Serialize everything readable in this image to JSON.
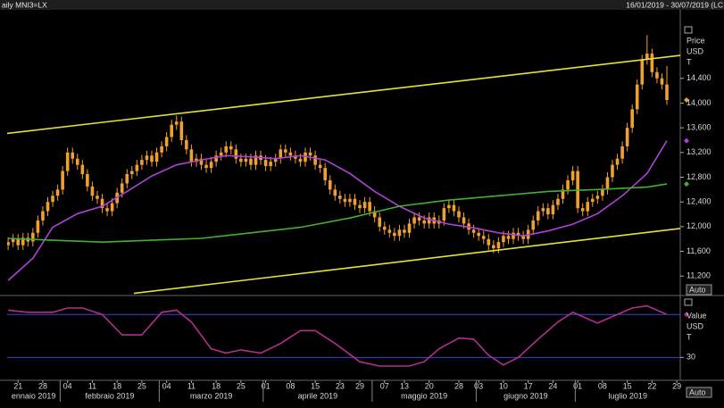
{
  "header": {
    "title": "aily MNI3=LX",
    "range": "16/01/2019 - 30/07/2019 (LC"
  },
  "chart_data": [
    {
      "type": "candlestick",
      "color": "#f0a030",
      "axis_label": [
        "Price",
        "USD",
        "T"
      ],
      "button": "Auto",
      "x": [
        1,
        2,
        3,
        4,
        5,
        6,
        7,
        8,
        9,
        10,
        11,
        12,
        13,
        14,
        15,
        16,
        17,
        18,
        19,
        20,
        21,
        22,
        23,
        24,
        25,
        26,
        27,
        28,
        29,
        30,
        31,
        32,
        33,
        34,
        35,
        36,
        37,
        38,
        39,
        40,
        41,
        42,
        43,
        44,
        45,
        46,
        47,
        48,
        49,
        50,
        51,
        52,
        53,
        54,
        55,
        56,
        57,
        58,
        59,
        60,
        61,
        62,
        63,
        64,
        65,
        66,
        67,
        68,
        69,
        70,
        71,
        72,
        73,
        74,
        75,
        76,
        77,
        78,
        79,
        80,
        81,
        82,
        83,
        84,
        85,
        86,
        87,
        88,
        89,
        90,
        91,
        92,
        93,
        94,
        95,
        96,
        97,
        98,
        99,
        100,
        101,
        102,
        103,
        104,
        105,
        106,
        107,
        108,
        109,
        110,
        111,
        112,
        113,
        114,
        115,
        116,
        117,
        118,
        119,
        120,
        121,
        122,
        123,
        124,
        125,
        126,
        127,
        128,
        129,
        130,
        131,
        132,
        133,
        134
      ],
      "open": [
        11700,
        11750,
        11800,
        11700,
        11820,
        11760,
        11900,
        12100,
        12250,
        12400,
        12500,
        12600,
        12900,
        13200,
        13100,
        13000,
        12850,
        12650,
        12500,
        12450,
        12300,
        12250,
        12380,
        12550,
        12700,
        12850,
        12900,
        13000,
        13080,
        13150,
        13050,
        13200,
        13300,
        13450,
        13650,
        13700,
        13400,
        13250,
        13050,
        13100,
        13000,
        12950,
        13050,
        13150,
        13200,
        13300,
        13250,
        13100,
        13050,
        13100,
        13000,
        13150,
        13080,
        12980,
        13050,
        13100,
        13250,
        13200,
        13150,
        13100,
        13050,
        13200,
        13150,
        13000,
        12950,
        12750,
        12600,
        12500,
        12450,
        12400,
        12450,
        12350,
        12300,
        12400,
        12250,
        12150,
        12000,
        11950,
        11900,
        11850,
        11950,
        11900,
        12050,
        12150,
        12100,
        12050,
        12150,
        12050,
        12100,
        12300,
        12350,
        12250,
        12150,
        12050,
        11950,
        11900,
        11850,
        11800,
        11700,
        11650,
        11750,
        11850,
        11800,
        11900,
        11850,
        11800,
        11950,
        12100,
        12250,
        12300,
        12200,
        12350,
        12450,
        12600,
        12750,
        12900,
        12300,
        12250,
        12400,
        12450,
        12500,
        12600,
        12800,
        13000,
        13100,
        13300,
        13600,
        13900,
        14300,
        14700,
        14800,
        14500,
        14400,
        14300
      ],
      "high": [
        11830,
        11880,
        11880,
        11900,
        11900,
        11980,
        12180,
        12330,
        12480,
        12580,
        12680,
        12980,
        13280,
        13280,
        13180,
        13080,
        12930,
        12730,
        12580,
        12530,
        12380,
        12460,
        12630,
        12780,
        12930,
        12980,
        13080,
        13160,
        13230,
        13230,
        13280,
        13380,
        13530,
        13730,
        13800,
        13780,
        13480,
        13330,
        13180,
        13180,
        13080,
        13130,
        13230,
        13280,
        13380,
        13380,
        13330,
        13180,
        13180,
        13180,
        13230,
        13230,
        13160,
        13130,
        13180,
        13330,
        13330,
        13280,
        13230,
        13180,
        13280,
        13280,
        13230,
        13080,
        13030,
        12830,
        12680,
        12580,
        12530,
        12530,
        12530,
        12430,
        12480,
        12480,
        12330,
        12230,
        12080,
        12030,
        11980,
        12030,
        12030,
        12130,
        12230,
        12230,
        12180,
        12230,
        12230,
        12180,
        12380,
        12430,
        12430,
        12330,
        12230,
        12130,
        12030,
        11980,
        11930,
        11880,
        11780,
        11830,
        11930,
        11930,
        11980,
        11980,
        11930,
        12030,
        12180,
        12330,
        12380,
        12380,
        12430,
        12530,
        12680,
        12830,
        12980,
        12980,
        12380,
        12480,
        12530,
        12580,
        12680,
        12880,
        13080,
        13180,
        13380,
        13680,
        13980,
        14380,
        14780,
        15100,
        14880,
        14580,
        14480,
        14600
      ],
      "low": [
        11620,
        11670,
        11620,
        11620,
        11680,
        11680,
        11820,
        12020,
        12170,
        12320,
        12420,
        12520,
        12820,
        13020,
        12920,
        12770,
        12570,
        12420,
        12370,
        12220,
        12170,
        12170,
        12300,
        12470,
        12620,
        12770,
        12820,
        12920,
        13000,
        12970,
        12970,
        13120,
        13220,
        13370,
        13570,
        13320,
        13170,
        12970,
        12970,
        12920,
        12870,
        12870,
        12970,
        13070,
        13120,
        13170,
        13020,
        12970,
        12970,
        12920,
        12920,
        13000,
        12900,
        12900,
        12970,
        13020,
        13120,
        13070,
        13020,
        12970,
        12970,
        13070,
        12920,
        12870,
        12670,
        12520,
        12420,
        12370,
        12320,
        12320,
        12270,
        12220,
        12220,
        12170,
        12070,
        11920,
        11870,
        11820,
        11770,
        11770,
        11820,
        11820,
        11970,
        12020,
        11970,
        11970,
        11970,
        11970,
        12020,
        12220,
        12170,
        12070,
        11970,
        11870,
        11820,
        11770,
        11720,
        11620,
        11570,
        11570,
        11670,
        11720,
        11720,
        11770,
        11720,
        11720,
        11870,
        12020,
        12170,
        12120,
        12120,
        12270,
        12370,
        12520,
        12670,
        12220,
        12170,
        12170,
        12320,
        12370,
        12420,
        12520,
        12720,
        12920,
        13020,
        13220,
        13520,
        13820,
        14220,
        14620,
        14420,
        14320,
        14220,
        13970
      ],
      "close": [
        11750,
        11800,
        11700,
        11820,
        11760,
        11900,
        12100,
        12250,
        12400,
        12500,
        12600,
        12900,
        13200,
        13100,
        13000,
        12850,
        12650,
        12500,
        12450,
        12300,
        12250,
        12380,
        12550,
        12700,
        12850,
        12900,
        13000,
        13080,
        13150,
        13050,
        13200,
        13300,
        13450,
        13650,
        13700,
        13400,
        13250,
        13050,
        13100,
        13000,
        12950,
        13050,
        13150,
        13200,
        13300,
        13250,
        13100,
        13050,
        13100,
        13000,
        13150,
        13080,
        12980,
        13050,
        13100,
        13250,
        13200,
        13150,
        13100,
        13050,
        13200,
        13150,
        13000,
        12950,
        12750,
        12600,
        12500,
        12450,
        12400,
        12450,
        12350,
        12300,
        12400,
        12250,
        12150,
        12000,
        11950,
        11900,
        11850,
        11950,
        11900,
        12050,
        12150,
        12100,
        12050,
        12150,
        12050,
        12100,
        12300,
        12350,
        12250,
        12150,
        12050,
        11950,
        11900,
        11850,
        11800,
        11700,
        11650,
        11750,
        11850,
        11800,
        11900,
        11850,
        11800,
        11950,
        12100,
        12250,
        12300,
        12200,
        12350,
        12450,
        12600,
        12750,
        12900,
        12300,
        12250,
        12400,
        12450,
        12500,
        12600,
        12800,
        13000,
        13100,
        13300,
        13600,
        13900,
        14300,
        14700,
        14800,
        14500,
        14400,
        14300,
        14050
      ],
      "lines": [
        {
          "color": "#b040d8",
          "last_value_marker": true,
          "x": [
            1,
            6,
            10,
            15,
            20,
            25,
            30,
            35,
            40,
            45,
            50,
            55,
            60,
            65,
            70,
            75,
            80,
            85,
            90,
            95,
            100,
            105,
            110,
            115,
            120,
            125,
            130,
            134
          ],
          "values": [
            11130,
            11490,
            11990,
            12210,
            12330,
            12570,
            12820,
            13000,
            13080,
            13150,
            13130,
            13100,
            13150,
            13080,
            12860,
            12570,
            12330,
            12140,
            12040,
            11980,
            11900,
            11850,
            11930,
            12040,
            12210,
            12500,
            12860,
            13390
          ]
        },
        {
          "color": "#44b030",
          "last_value_marker": true,
          "x": [
            1,
            10,
            20,
            30,
            40,
            50,
            60,
            70,
            80,
            90,
            100,
            110,
            120,
            130,
            134
          ],
          "values": [
            11810,
            11780,
            11750,
            11780,
            11810,
            11900,
            11990,
            12140,
            12330,
            12430,
            12500,
            12570,
            12600,
            12640,
            12690
          ]
        },
        {
          "color": "#e6e23a",
          "x": [
            0.8,
            136.7
          ],
          "values": [
            13510,
            14770
          ]
        },
        {
          "color": "#e6e23a",
          "x": [
            26.4,
            136.7
          ],
          "values": [
            10920,
            11970
          ]
        }
      ],
      "xlim": [
        0.8,
        136.7
      ],
      "xticks": [
        {
          "value": 3,
          "label": "21"
        },
        {
          "value": 8,
          "label": "28"
        },
        {
          "value": 13,
          "label": "04"
        },
        {
          "value": 18,
          "label": "11"
        },
        {
          "value": 23,
          "label": "18"
        },
        {
          "value": 28,
          "label": "25"
        },
        {
          "value": 33,
          "label": "04"
        },
        {
          "value": 38,
          "label": "11"
        },
        {
          "value": 43,
          "label": "18"
        },
        {
          "value": 48,
          "label": "25"
        },
        {
          "value": 53,
          "label": "01"
        },
        {
          "value": 58,
          "label": "08"
        },
        {
          "value": 63,
          "label": "15"
        },
        {
          "value": 68,
          "label": "23"
        },
        {
          "value": 72,
          "label": "29"
        },
        {
          "value": 77,
          "label": "07"
        },
        {
          "value": 81,
          "label": "13"
        },
        {
          "value": 86,
          "label": "20"
        },
        {
          "value": 92,
          "label": "28"
        },
        {
          "value": 96,
          "label": "03"
        },
        {
          "value": 101,
          "label": "10"
        },
        {
          "value": 106,
          "label": "17"
        },
        {
          "value": 111,
          "label": "24"
        },
        {
          "value": 116,
          "label": "01"
        },
        {
          "value": 121,
          "label": "08"
        },
        {
          "value": 126,
          "label": "15"
        },
        {
          "value": 131,
          "label": "22"
        },
        {
          "value": 136,
          "label": "29"
        }
      ],
      "months": [
        {
          "value": 0,
          "label": "ennaio 2019"
        },
        {
          "value": 12,
          "label": "febbraio 2019"
        },
        {
          "value": 32,
          "label": "marzo 2019"
        },
        {
          "value": 53,
          "label": "aprile 2019"
        },
        {
          "value": 75,
          "label": "maggio 2019"
        },
        {
          "value": 96,
          "label": "giugno 2019"
        },
        {
          "value": 116,
          "label": "luglio 2019"
        }
      ],
      "ylim": [
        10900,
        15350
      ],
      "yticks": [
        {
          "value": 11200,
          "label": "11,200"
        },
        {
          "value": 11600,
          "label": "11,600"
        },
        {
          "value": 12000,
          "label": "12,000"
        },
        {
          "value": 12400,
          "label": "12,400"
        },
        {
          "value": 12800,
          "label": "12,800"
        },
        {
          "value": 13200,
          "label": "13,200"
        },
        {
          "value": 13600,
          "label": "13,600"
        },
        {
          "value": 14000,
          "label": "14,000"
        },
        {
          "value": 14400,
          "label": "14,400"
        }
      ]
    },
    {
      "type": "line",
      "axis_label": [
        "Value",
        "USD",
        "T"
      ],
      "button": "Auto",
      "series": [
        {
          "color": "#b0308a",
          "last_value_marker": true,
          "x": [
            1,
            5,
            10,
            13,
            16,
            20,
            24,
            28,
            32,
            35,
            38,
            42,
            45,
            48,
            52,
            56,
            60,
            63,
            67,
            72,
            76,
            82,
            85,
            88,
            92,
            95,
            98,
            101,
            104,
            108,
            112,
            115,
            117,
            120,
            123,
            127,
            130,
            134
          ],
          "values": [
            74,
            72,
            72,
            76,
            76,
            70,
            51,
            51,
            72,
            74,
            63,
            38,
            34,
            37,
            34,
            43,
            55,
            55,
            43,
            26,
            22,
            22,
            26,
            38,
            48,
            47,
            32,
            23,
            30,
            47,
            63,
            72,
            68,
            62,
            68,
            76,
            78,
            70
          ]
        }
      ],
      "ylim": [
        7,
        86
      ],
      "yticks": [
        30
      ],
      "reference_lines": [
        70,
        30
      ],
      "reference_color": "#4040e0"
    }
  ]
}
